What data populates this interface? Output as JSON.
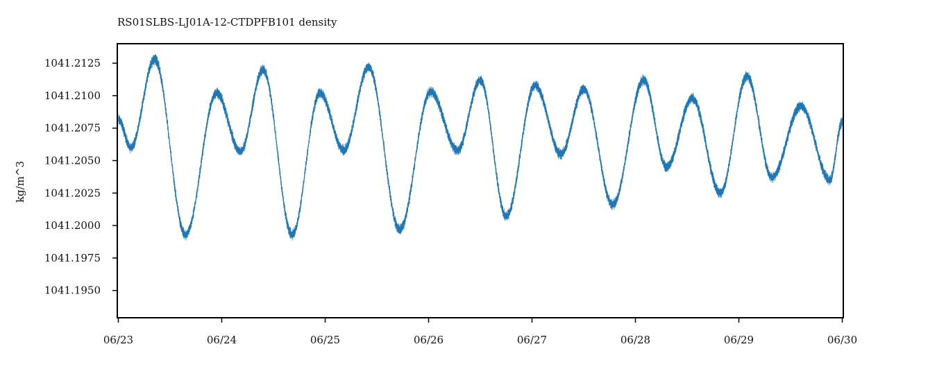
{
  "chart_data": {
    "type": "line",
    "title": "RS01SLBS-LJ01A-12-CTDPFB101 density",
    "xlabel": "",
    "ylabel": "kg/m^3",
    "x_tick_labels": [
      "06/23",
      "06/24",
      "06/25",
      "06/26",
      "06/27",
      "06/28",
      "06/29",
      "06/30"
    ],
    "x_ticks_day": [
      0,
      1,
      2,
      3,
      4,
      5,
      6,
      7
    ],
    "xlim_day": [
      -0.01,
      7.01
    ],
    "y_tick_labels": [
      "1041.1950",
      "1041.1975",
      "1041.2000",
      "1041.2025",
      "1041.2050",
      "1041.2075",
      "1041.2100",
      "1041.2125"
    ],
    "y_ticks": [
      1041.195,
      1041.1975,
      1041.2,
      1041.2025,
      1041.205,
      1041.2075,
      1041.21,
      1041.2125
    ],
    "ylim": [
      1041.1929,
      1041.214
    ],
    "grid": false,
    "series": [
      {
        "color": "#1f77b4",
        "x_day": [
          0.0,
          0.12,
          0.35,
          0.65,
          0.95,
          1.18,
          1.4,
          1.68,
          1.95,
          2.18,
          2.42,
          2.72,
          3.02,
          3.28,
          3.5,
          3.75,
          4.03,
          4.28,
          4.5,
          4.78,
          5.08,
          5.3,
          5.55,
          5.82,
          6.08,
          6.32,
          6.6,
          6.88,
          7.0
        ],
        "y": [
          1041.2082,
          1041.206,
          1041.2128,
          1041.1993,
          1041.2102,
          1041.2057,
          1041.212,
          1041.1993,
          1041.2102,
          1041.2058,
          1041.2122,
          1041.1997,
          1041.2103,
          1041.2058,
          1041.2112,
          1041.2007,
          1041.2108,
          1041.2055,
          1041.2105,
          1041.2016,
          1041.2112,
          1041.2045,
          1041.2098,
          1041.2025,
          1041.2115,
          1041.2037,
          1041.2092,
          1041.2035,
          1041.208
        ]
      }
    ]
  }
}
